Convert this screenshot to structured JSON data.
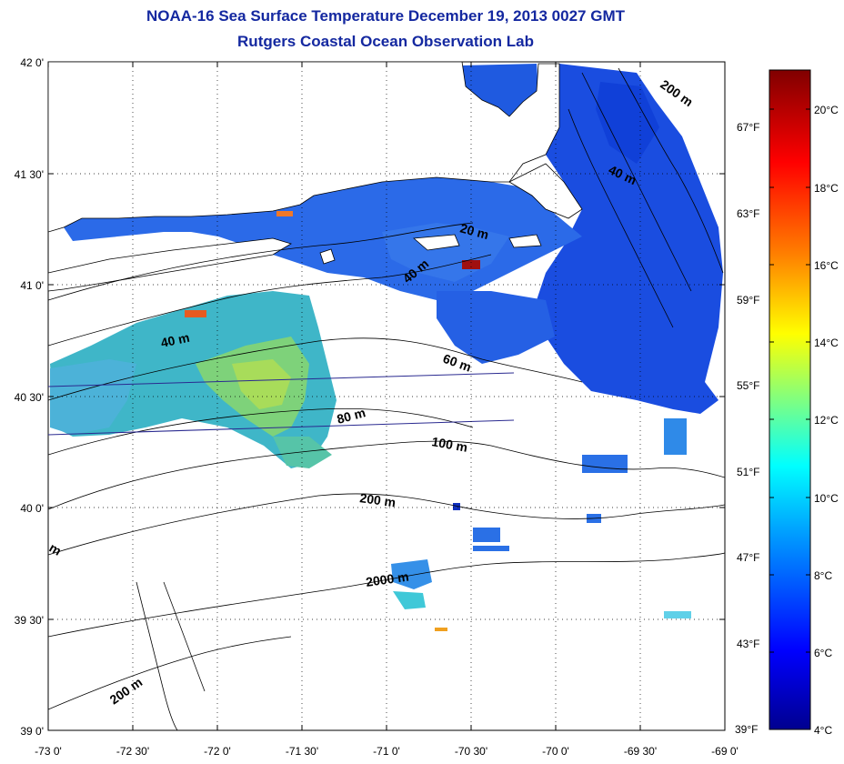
{
  "title": "NOAA-16 Sea Surface Temperature December 19, 2013 0027 GMT",
  "subtitle": "Rutgers Coastal Ocean Observation Lab",
  "map": {
    "lon_range": [
      -73,
      -69
    ],
    "lat_range": [
      39,
      42
    ],
    "lon_ticks": [
      "-73 0'",
      "-72 30'",
      "-72 0'",
      "-71 30'",
      "-71 0'",
      "-70 30'",
      "-70 0'",
      "-69 30'",
      "-69 0'"
    ],
    "lat_ticks": [
      "42 0'",
      "41 30'",
      "41 0'",
      "40 30'",
      "40 0'",
      "39 30'",
      "39 0'"
    ],
    "grid": "dotted",
    "contour_labels": [
      "40 m",
      "20 m",
      "200 m",
      "40 m",
      "40 m",
      "60 m",
      "80 m",
      "100 m",
      "200 m",
      "2000 m",
      "200 m",
      "m"
    ]
  },
  "colorbar": {
    "celsius_ticks": [
      "20°C",
      "18°C",
      "16°C",
      "14°C",
      "12°C",
      "10°C",
      "8°C",
      "6°C",
      "4°C"
    ],
    "fahrenheit_ticks": [
      "67°F",
      "63°F",
      "59°F",
      "55°F",
      "51°F",
      "47°F",
      "43°F",
      "39°F"
    ],
    "colors": [
      "#00008f",
      "#0000ff",
      "#00a0ff",
      "#00ffff",
      "#80ff80",
      "#ffff00",
      "#ff8000",
      "#ff0000",
      "#800000"
    ]
  }
}
